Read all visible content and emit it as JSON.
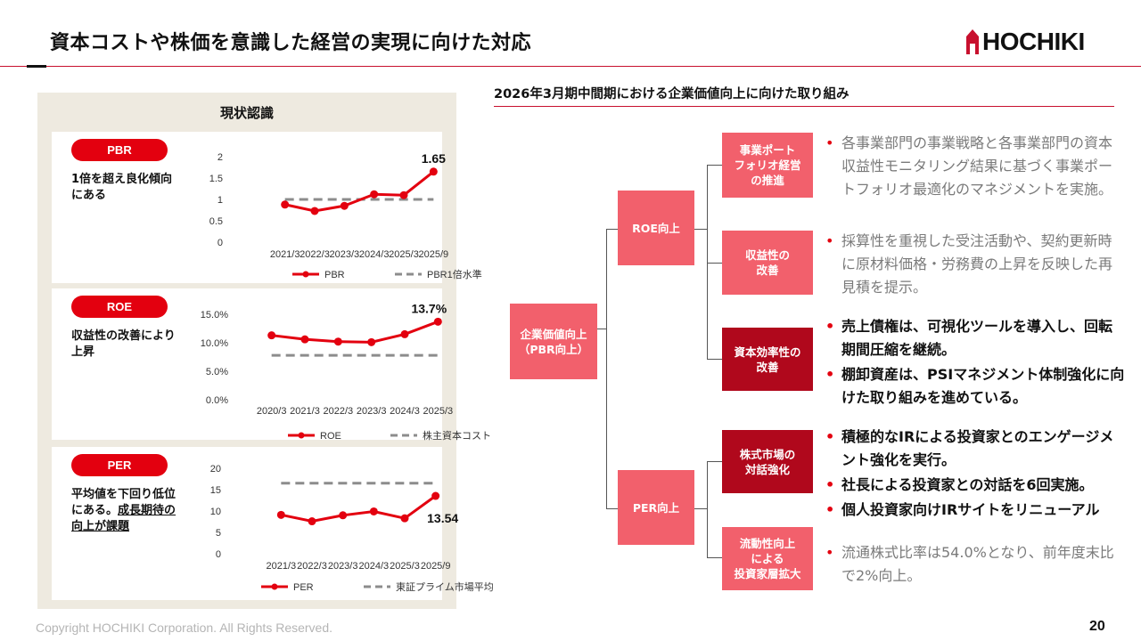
{
  "header": {
    "title": "資本コストや株価を意識した経営の実現に向けた対応",
    "logo_text": "HOCHIKI",
    "accent_color": "#c8102e"
  },
  "left_panel": {
    "title": "現状認識"
  },
  "chart_data": [
    {
      "type": "line",
      "badge": "PBR",
      "description": "1倍を超え良化傾向にある",
      "categories": [
        "2021/3",
        "2022/3",
        "2023/3",
        "2024/3",
        "2025/3",
        "2025/9"
      ],
      "series": [
        {
          "name": "PBR",
          "values": [
            0.88,
            0.73,
            0.85,
            1.12,
            1.1,
            1.65
          ],
          "color": "#e3000f",
          "style": "solid-marker"
        },
        {
          "name": "PBR1倍水準",
          "values": [
            1.0,
            1.0,
            1.0,
            1.0,
            1.0,
            1.0
          ],
          "color": "#8c8c8c",
          "style": "dashed"
        }
      ],
      "yticks": [
        "0",
        "0.5",
        "1",
        "1.5",
        "2"
      ],
      "ylim": [
        0,
        2
      ],
      "annotation": "1.65",
      "legend": "bottom"
    },
    {
      "type": "line",
      "badge": "ROE",
      "description": "収益性の改善により上昇",
      "categories": [
        "2020/3",
        "2021/3",
        "2022/3",
        "2023/3",
        "2024/3",
        "2025/3"
      ],
      "series": [
        {
          "name": "ROE",
          "values": [
            11.3,
            10.6,
            10.2,
            10.1,
            11.5,
            13.7
          ],
          "color": "#e3000f",
          "style": "solid-marker"
        },
        {
          "name": "株主資本コスト",
          "values": [
            7.8,
            7.8,
            7.8,
            7.8,
            7.8,
            7.8
          ],
          "color": "#8c8c8c",
          "style": "dashed"
        }
      ],
      "yticks": [
        "0.0%",
        "5.0%",
        "10.0%",
        "15.0%"
      ],
      "ylim": [
        0,
        15
      ],
      "annotation": "13.7%",
      "legend": "bottom"
    },
    {
      "type": "line",
      "badge": "PER",
      "description_plain": "平均値を下回り低位にある。",
      "description_underlined": "成長期待の向上が課題",
      "categories": [
        "2021/3",
        "2022/3",
        "2023/3",
        "2024/3",
        "2025/3",
        "2025/9"
      ],
      "series": [
        {
          "name": "PER",
          "values": [
            9.1,
            7.6,
            9.0,
            9.9,
            8.3,
            13.54
          ],
          "color": "#e3000f",
          "style": "solid-marker"
        },
        {
          "name": "東証プライム市場平均",
          "values": [
            16.5,
            16.5,
            16.5,
            16.5,
            16.5,
            16.5
          ],
          "color": "#8c8c8c",
          "style": "dashed"
        }
      ],
      "yticks": [
        "0",
        "5",
        "10",
        "15",
        "20"
      ],
      "ylim": [
        0,
        20
      ],
      "annotation": "13.54",
      "legend": "bottom"
    }
  ],
  "right": {
    "heading": "2026年3月期中間期における企業価値向上に向けた取り組み",
    "root": "企業価値向上\n（PBR向上）",
    "roe_box": "ROE向上",
    "per_box": "PER向上",
    "items": [
      {
        "label": "事業ポート\nフォリオ経営\nの推進",
        "style": "pink",
        "bullets": [
          "各事業部門の事業戦略と各事業部門の資本収益性モニタリング結果に基づく事業ポートフォリオ最適化のマネジメントを実施。"
        ],
        "text_style": "gray"
      },
      {
        "label": "収益性の\n改善",
        "style": "pink",
        "bullets": [
          "採算性を重視した受注活動や、契約更新時に原材料価格・労務費の上昇を反映した再見積を提示。"
        ],
        "text_style": "gray"
      },
      {
        "label": "資本効率性の\n改善",
        "style": "dark",
        "bullets": [
          "売上債権は、可視化ツールを導入し、回転期間圧縮を継続。",
          "棚卸資産は、PSIマネジメント体制強化に向けた取り組みを進めている。"
        ],
        "text_style": "bold"
      },
      {
        "label": "株式市場の\n対話強化",
        "style": "dark",
        "bullets": [
          "積極的なIRによる投資家とのエンゲージメント強化を実行。",
          "社長による投資家との対話を6回実施。",
          "個人投資家向けIRサイトをリニューアル"
        ],
        "text_style": "bold"
      },
      {
        "label": "流動性向上\nによる\n投資家層拡大",
        "style": "pink",
        "bullets": [
          "流通株式比率は54.0%となり、前年度末比で2%向上。"
        ],
        "text_style": "gray"
      }
    ]
  },
  "footer": {
    "copyright": "Copyright HOCHIKI Corporation. All Rights Reserved.",
    "page": "20"
  }
}
